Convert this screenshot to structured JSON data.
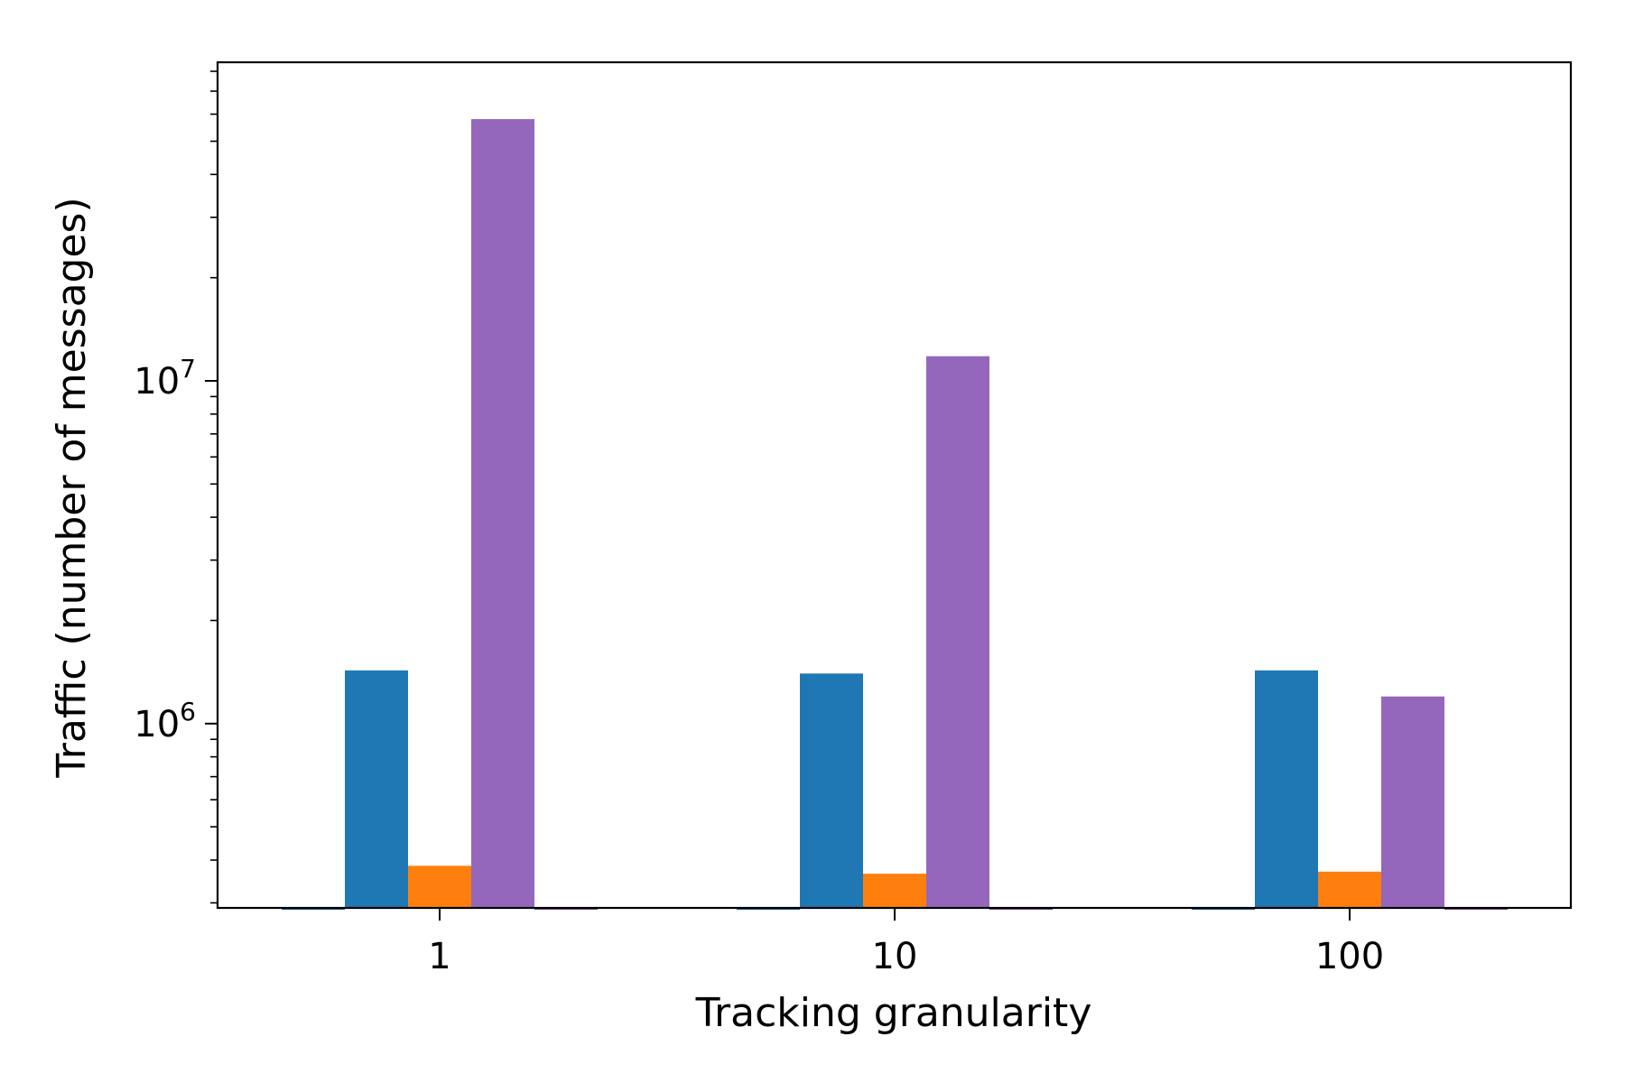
{
  "chart_data": {
    "type": "bar",
    "title": "",
    "xlabel": "Tracking granularity",
    "ylabel": "Traffic (number of messages)",
    "yscale": "log",
    "ylim": [
      290000,
      85000000
    ],
    "categories": [
      "1",
      "10",
      "100"
    ],
    "y_ticks": [
      {
        "value": 1000000,
        "base": "10",
        "exp": "6"
      },
      {
        "value": 10000000,
        "base": "10",
        "exp": "7"
      }
    ],
    "series": [
      {
        "values": [
          290000,
          290000,
          290000
        ],
        "color": "#1a5fa0"
      },
      {
        "values": [
          1430000,
          1400000,
          1430000
        ],
        "color": "#1f77b4"
      },
      {
        "values": [
          385000,
          365000,
          370000
        ],
        "color": "#ff7f0e"
      },
      {
        "values": [
          58000000,
          11800000,
          1200000
        ],
        "color": "#9467bd"
      },
      {
        "values": [
          290000,
          290000,
          290000
        ],
        "color": "#6b4a8c"
      }
    ],
    "grid": false,
    "legend": "none"
  }
}
